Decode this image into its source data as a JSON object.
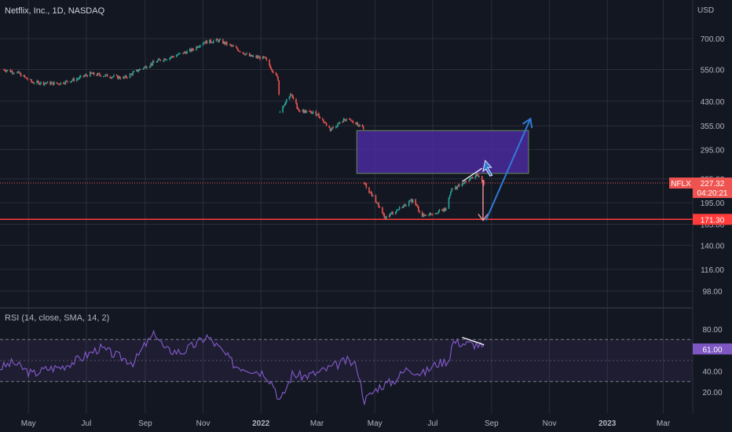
{
  "header": {
    "title": "Netflix, Inc., 1D, NASDAQ",
    "currency": "USD"
  },
  "rsi": {
    "label": "RSI (14, close, SMA, 14, 2)",
    "value_badge": "61.00"
  },
  "badges": {
    "symbol": "NFLX",
    "price": "227.32",
    "countdown": "04:20:21",
    "support": "171.30"
  },
  "chart_data": [
    {
      "type": "candlestick",
      "title": "Netflix, Inc., 1D, NASDAQ",
      "y_scale": "log",
      "ylim": [
        86,
        900
      ],
      "y_ticks": [
        "700.00",
        "550.00",
        "430.00",
        "355.00",
        "295.00",
        "235.00",
        "195.00",
        "165.00",
        "140.00",
        "116.00",
        "98.00"
      ],
      "x_labels": [
        "May",
        "Jul",
        "Sep",
        "Nov",
        "2022",
        "Mar",
        "May",
        "Jul",
        "Sep",
        "Nov",
        "2023",
        "Mar"
      ],
      "price_path": [
        [
          "2021-04-05",
          550
        ],
        [
          "2021-04-20",
          535
        ],
        [
          "2021-05-05",
          498
        ],
        [
          "2021-06-01",
          493
        ],
        [
          "2021-06-20",
          510
        ],
        [
          "2021-07-05",
          532
        ],
        [
          "2021-07-20",
          525
        ],
        [
          "2021-08-10",
          515
        ],
        [
          "2021-08-25",
          548
        ],
        [
          "2021-09-15",
          590
        ],
        [
          "2021-10-01",
          610
        ],
        [
          "2021-10-20",
          640
        ],
        [
          "2021-11-01",
          680
        ],
        [
          "2021-11-17",
          690
        ],
        [
          "2021-12-01",
          660
        ],
        [
          "2021-12-20",
          610
        ],
        [
          "2022-01-05",
          600
        ],
        [
          "2022-01-19",
          510
        ],
        [
          "2022-01-21",
          398
        ],
        [
          "2022-02-01",
          455
        ],
        [
          "2022-02-10",
          400
        ],
        [
          "2022-03-01",
          390
        ],
        [
          "2022-03-15",
          345
        ],
        [
          "2022-04-01",
          375
        ],
        [
          "2022-04-19",
          348
        ],
        [
          "2022-04-20",
          226
        ],
        [
          "2022-05-05",
          190
        ],
        [
          "2022-05-11",
          173
        ],
        [
          "2022-05-25",
          185
        ],
        [
          "2022-06-10",
          199
        ],
        [
          "2022-06-20",
          176
        ],
        [
          "2022-07-01",
          180
        ],
        [
          "2022-07-15",
          185
        ],
        [
          "2022-07-20",
          215
        ],
        [
          "2022-08-01",
          225
        ],
        [
          "2022-08-16",
          243
        ],
        [
          "2022-08-24",
          227.32
        ]
      ],
      "last_price": 227.32,
      "horizontal_lines": [
        227.32,
        171.3
      ],
      "zone": {
        "from": "2022-04-12",
        "to": "2022-10-10",
        "price_low": 245,
        "price_high": 342
      },
      "projection": {
        "from": [
          "2022-08-26",
          170
        ],
        "to": [
          "2022-10-12",
          375
        ]
      },
      "down_arrow": {
        "date": "2022-08-23",
        "from": 233,
        "to": 170
      },
      "trendline": {
        "from": [
          "2022-08-01",
          230
        ],
        "to": [
          "2022-08-22",
          255
        ]
      }
    },
    {
      "type": "line",
      "title": "RSI (14, close, SMA, 14, 2)",
      "ylim": [
        0,
        100
      ],
      "y_ticks": [
        "80.00",
        "40.00",
        "20.00"
      ],
      "bands": [
        30,
        50,
        70
      ],
      "rsi_path": [
        [
          "2021-04-01",
          43
        ],
        [
          "2021-04-15",
          48
        ],
        [
          "2021-05-05",
          37
        ],
        [
          "2021-05-20",
          42
        ],
        [
          "2021-06-05",
          44
        ],
        [
          "2021-06-25",
          52
        ],
        [
          "2021-07-15",
          62
        ],
        [
          "2021-08-01",
          55
        ],
        [
          "2021-08-20",
          48
        ],
        [
          "2021-09-01",
          65
        ],
        [
          "2021-09-12",
          76
        ],
        [
          "2021-09-22",
          60
        ],
        [
          "2021-10-10",
          58
        ],
        [
          "2021-10-25",
          66
        ],
        [
          "2021-11-05",
          73
        ],
        [
          "2021-11-20",
          60
        ],
        [
          "2021-12-05",
          45
        ],
        [
          "2021-12-20",
          42
        ],
        [
          "2022-01-05",
          38
        ],
        [
          "2022-01-15",
          26
        ],
        [
          "2022-01-21",
          10
        ],
        [
          "2022-02-03",
          37
        ],
        [
          "2022-02-15",
          35
        ],
        [
          "2022-03-01",
          38
        ],
        [
          "2022-03-20",
          45
        ],
        [
          "2022-04-01",
          50
        ],
        [
          "2022-04-12",
          45
        ],
        [
          "2022-04-20",
          12
        ],
        [
          "2022-05-05",
          25
        ],
        [
          "2022-05-20",
          30
        ],
        [
          "2022-06-05",
          43
        ],
        [
          "2022-06-20",
          37
        ],
        [
          "2022-07-05",
          47
        ],
        [
          "2022-07-18",
          50
        ],
        [
          "2022-07-22",
          68
        ],
        [
          "2022-08-05",
          66
        ],
        [
          "2022-08-18",
          65
        ],
        [
          "2022-08-24",
          61
        ]
      ],
      "last_value": 61.0,
      "divergence_line": {
        "from": [
          "2022-08-01",
          72
        ],
        "to": [
          "2022-08-24",
          65
        ]
      }
    }
  ],
  "colors": {
    "background": "#131722",
    "up": "#26a69a",
    "down": "#ef5350",
    "rsi_line": "#7e57c2",
    "band_fill": "#7e57c2",
    "zone_fill": "#4b2a9e",
    "projection": "#2f7ad6",
    "support": "#ff3b3b",
    "grid": "#2a2e39"
  }
}
